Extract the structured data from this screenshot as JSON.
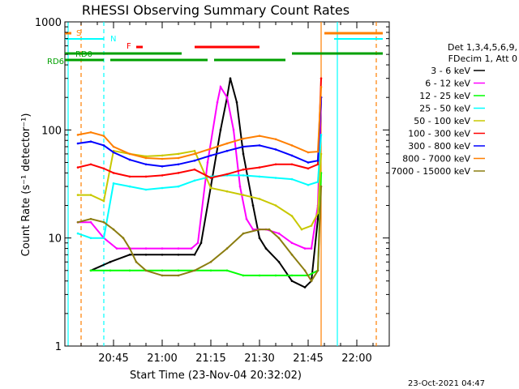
{
  "chart_data": {
    "type": "line",
    "title": "RHESSI Observing Summary Count Rates",
    "xlabel": "Start Time (23-Nov-04 20:32:02)",
    "ylabel": "Count Rate (s⁻¹ detector⁻¹)",
    "ylim": [
      1,
      1000
    ],
    "yscale": "log",
    "xlim_minutes_after_2030": [
      0,
      100
    ],
    "x_ticks": [
      "20:45",
      "21:00",
      "21:15",
      "21:30",
      "21:45",
      "22:00"
    ],
    "y_ticks": [
      "1",
      "10",
      "100",
      "1000"
    ],
    "legend_header": [
      "Det 1,3,4,5,6,9,",
      "FDecim 1, Att 0"
    ],
    "legend_position": "right",
    "timestamp": "23-Oct-2021 04:47",
    "flags": [
      {
        "label": "S",
        "color": "#ff7f00"
      },
      {
        "label": "N",
        "color": "#00ffff"
      },
      {
        "label": "F",
        "color": "#ff0000"
      },
      {
        "label": "RD0",
        "color": "#00a000"
      },
      {
        "label": "RD6",
        "color": "#00a000"
      }
    ],
    "series": [
      {
        "name": "3 - 6 keV",
        "color": "#000000",
        "points": [
          [
            8,
            5
          ],
          [
            14,
            6
          ],
          [
            20,
            7
          ],
          [
            25,
            7
          ],
          [
            30,
            7
          ],
          [
            35,
            7
          ],
          [
            40,
            7
          ],
          [
            42,
            9
          ],
          [
            45,
            30
          ],
          [
            48,
            100
          ],
          [
            50,
            200
          ],
          [
            51,
            300
          ],
          [
            53,
            180
          ],
          [
            55,
            60
          ],
          [
            58,
            20
          ],
          [
            60,
            10
          ],
          [
            62,
            8
          ],
          [
            66,
            6
          ],
          [
            70,
            4
          ],
          [
            74,
            3.5
          ],
          [
            76,
            4
          ],
          [
            78,
            15
          ],
          [
            79,
            200
          ]
        ]
      },
      {
        "name": "6 - 12 keV",
        "color": "#ff00ff",
        "points": [
          [
            4,
            14
          ],
          [
            8,
            14
          ],
          [
            12,
            10
          ],
          [
            16,
            8
          ],
          [
            20,
            8
          ],
          [
            25,
            8
          ],
          [
            30,
            8
          ],
          [
            35,
            8
          ],
          [
            39,
            8
          ],
          [
            41,
            9
          ],
          [
            44,
            50
          ],
          [
            47,
            180
          ],
          [
            48,
            250
          ],
          [
            50,
            200
          ],
          [
            52,
            100
          ],
          [
            54,
            30
          ],
          [
            56,
            15
          ],
          [
            58,
            12
          ],
          [
            62,
            12
          ],
          [
            66,
            11
          ],
          [
            70,
            9
          ],
          [
            74,
            8
          ],
          [
            76,
            8
          ],
          [
            78,
            20
          ],
          [
            79,
            200
          ]
        ]
      },
      {
        "name": "12 - 25 keV",
        "color": "#00ff00",
        "points": [
          [
            8,
            5
          ],
          [
            14,
            5
          ],
          [
            20,
            5
          ],
          [
            25,
            5
          ],
          [
            30,
            5
          ],
          [
            35,
            5
          ],
          [
            40,
            5
          ],
          [
            45,
            5
          ],
          [
            50,
            5
          ],
          [
            55,
            4.5
          ],
          [
            60,
            4.5
          ],
          [
            65,
            4.5
          ],
          [
            70,
            4.5
          ],
          [
            75,
            4.5
          ],
          [
            78,
            5
          ],
          [
            79,
            40
          ]
        ]
      },
      {
        "name": "25 - 50 keV",
        "color": "#00ffff",
        "points": [
          [
            4,
            11
          ],
          [
            8,
            10
          ],
          [
            12,
            10
          ],
          [
            15,
            32
          ],
          [
            20,
            30
          ],
          [
            25,
            28
          ],
          [
            30,
            29
          ],
          [
            35,
            30
          ],
          [
            40,
            34
          ],
          [
            45,
            37
          ],
          [
            50,
            38
          ],
          [
            55,
            38
          ],
          [
            60,
            37
          ],
          [
            65,
            36
          ],
          [
            70,
            35
          ],
          [
            75,
            31
          ],
          [
            78,
            33
          ],
          [
            79,
            90
          ]
        ]
      },
      {
        "name": "50 - 100 keV",
        "color": "#c8c800",
        "points": [
          [
            4,
            25
          ],
          [
            8,
            25
          ],
          [
            12,
            22
          ],
          [
            15,
            64
          ],
          [
            20,
            60
          ],
          [
            25,
            57
          ],
          [
            30,
            58
          ],
          [
            35,
            60
          ],
          [
            40,
            64
          ],
          [
            45,
            29
          ],
          [
            50,
            27
          ],
          [
            55,
            25
          ],
          [
            60,
            23
          ],
          [
            65,
            20
          ],
          [
            70,
            16
          ],
          [
            73,
            12
          ],
          [
            76,
            13
          ],
          [
            78,
            17
          ],
          [
            79,
            60
          ]
        ]
      },
      {
        "name": "100 - 300 keV",
        "color": "#ff0000",
        "points": [
          [
            4,
            45
          ],
          [
            8,
            48
          ],
          [
            12,
            44
          ],
          [
            15,
            40
          ],
          [
            20,
            37
          ],
          [
            25,
            37
          ],
          [
            30,
            38
          ],
          [
            35,
            40
          ],
          [
            40,
            43
          ],
          [
            45,
            36
          ],
          [
            50,
            39
          ],
          [
            55,
            43
          ],
          [
            60,
            45
          ],
          [
            65,
            48
          ],
          [
            70,
            48
          ],
          [
            75,
            44
          ],
          [
            78,
            48
          ],
          [
            79,
            300
          ]
        ]
      },
      {
        "name": "300 - 800 keV",
        "color": "#0000ff",
        "points": [
          [
            4,
            75
          ],
          [
            8,
            78
          ],
          [
            12,
            72
          ],
          [
            15,
            62
          ],
          [
            20,
            53
          ],
          [
            25,
            48
          ],
          [
            30,
            46
          ],
          [
            35,
            48
          ],
          [
            40,
            52
          ],
          [
            45,
            58
          ],
          [
            50,
            64
          ],
          [
            55,
            70
          ],
          [
            60,
            72
          ],
          [
            65,
            66
          ],
          [
            70,
            58
          ],
          [
            75,
            50
          ],
          [
            78,
            52
          ],
          [
            79,
            200
          ]
        ]
      },
      {
        "name": "800 - 7000 keV",
        "color": "#ff7f00",
        "points": [
          [
            4,
            90
          ],
          [
            8,
            95
          ],
          [
            12,
            88
          ],
          [
            15,
            70
          ],
          [
            20,
            60
          ],
          [
            25,
            55
          ],
          [
            30,
            54
          ],
          [
            35,
            55
          ],
          [
            40,
            60
          ],
          [
            45,
            67
          ],
          [
            50,
            75
          ],
          [
            55,
            83
          ],
          [
            60,
            88
          ],
          [
            65,
            82
          ],
          [
            70,
            72
          ],
          [
            75,
            62
          ],
          [
            78,
            63
          ],
          [
            79,
            250
          ]
        ]
      },
      {
        "name": "7000 - 15000 keV",
        "color": "#8b7d10",
        "points": [
          [
            4,
            14
          ],
          [
            8,
            15
          ],
          [
            12,
            14
          ],
          [
            15,
            12
          ],
          [
            18,
            10
          ],
          [
            20,
            8
          ],
          [
            22,
            6
          ],
          [
            25,
            5
          ],
          [
            30,
            4.5
          ],
          [
            35,
            4.5
          ],
          [
            40,
            5
          ],
          [
            45,
            6
          ],
          [
            50,
            8
          ],
          [
            55,
            11
          ],
          [
            60,
            12
          ],
          [
            63,
            12
          ],
          [
            66,
            10
          ],
          [
            70,
            7
          ],
          [
            74,
            5
          ],
          [
            76,
            4
          ],
          [
            78,
            5
          ],
          [
            79,
            30
          ]
        ]
      }
    ]
  }
}
